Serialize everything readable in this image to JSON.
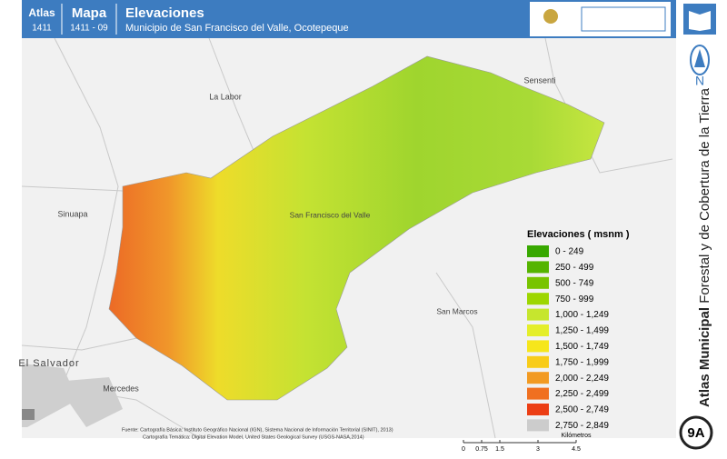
{
  "header": {
    "atlas_label": "Atlas",
    "atlas_number": "1411",
    "map_label": "Mapa",
    "map_number": "1411 - 09",
    "title": "Elevaciones",
    "subtitle": "Municipio de San Francisco del Valle, Ocotepeque"
  },
  "sidebar": {
    "north": "N",
    "series_bold": "Atlas Municipal",
    "series_rest": "Forestal y de Cobertura de la Tierra",
    "sheet": "9A"
  },
  "places": [
    {
      "label": "La Labor"
    },
    {
      "label": "Sensenti"
    },
    {
      "label": "Sinuapa"
    },
    {
      "label": "San Francisco del Valle"
    },
    {
      "label": "San Marcos"
    },
    {
      "label": "El Salvador"
    },
    {
      "label": "Mercedes"
    }
  ],
  "legend": {
    "title": "Elevaciones ( msnm )",
    "items": [
      {
        "label": "0 - 249",
        "color": "#38a800"
      },
      {
        "label": "250 - 499",
        "color": "#55b400"
      },
      {
        "label": "500 - 749",
        "color": "#78c400"
      },
      {
        "label": "750 - 999",
        "color": "#9dd600"
      },
      {
        "label": "1,000 - 1,249",
        "color": "#c6e62e"
      },
      {
        "label": "1,250 - 1,499",
        "color": "#e4ee2a"
      },
      {
        "label": "1,500 - 1,749",
        "color": "#f6e61c"
      },
      {
        "label": "1,750 - 1,999",
        "color": "#f8cc18"
      },
      {
        "label": "2,000 - 2,249",
        "color": "#f29a22"
      },
      {
        "label": "2,250 - 2,499",
        "color": "#f07020"
      },
      {
        "label": "2,500 - 2,749",
        "color": "#ec3e14"
      },
      {
        "label": "2,750 - 2,849",
        "color": "#cccccc"
      }
    ]
  },
  "sources": {
    "line1": "Fuente: Cartografía Básica: Instituto Geográfico Nacional (IGN), Sistema Nacional de Información Territorial (SINIT), 2013)",
    "line2": "Cartografía Temática: Digital Elevation Model, United States Geological Survey (USGS-NASA,2014)"
  },
  "scale": {
    "ticks": [
      "0",
      "0.75",
      "1.5",
      "3",
      "4.5"
    ],
    "unit": "Kilómetros"
  }
}
